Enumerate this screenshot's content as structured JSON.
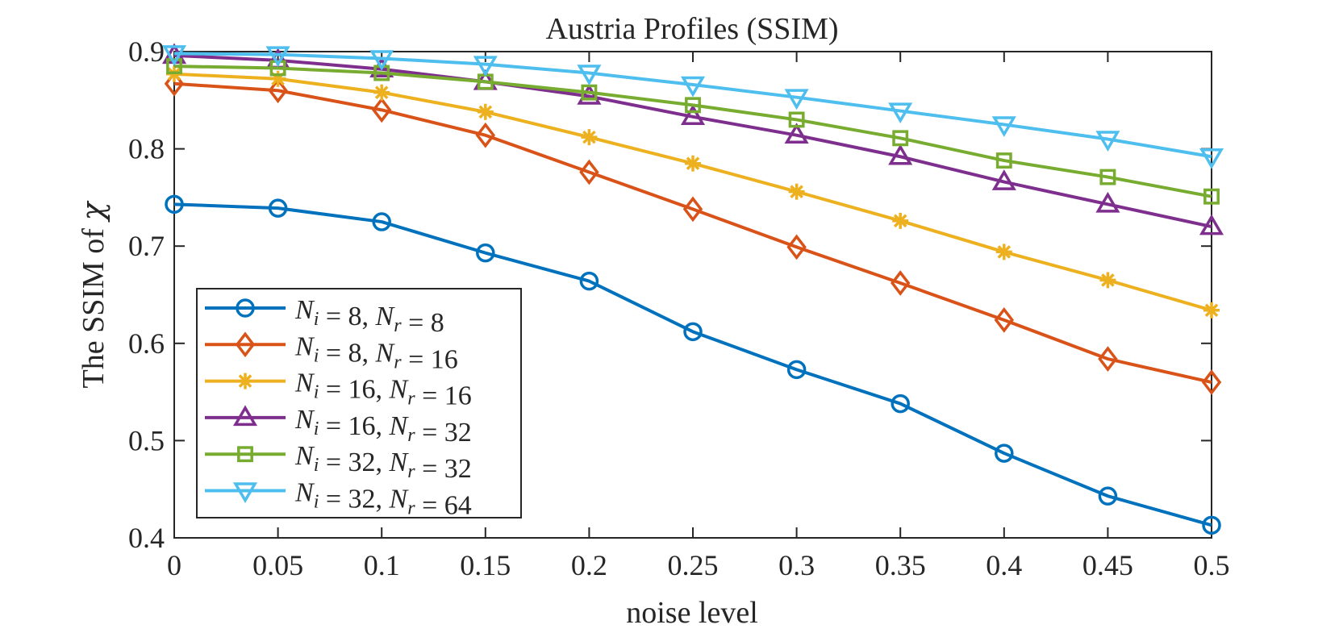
{
  "chart_data": {
    "type": "line",
    "title": "Austria Profiles (SSIM)",
    "xlabel": "noise level",
    "ylabel": "The SSIM of χ",
    "ylabel_prefix": "The SSIM of ",
    "ylabel_symbol": "χ",
    "xlim": [
      0,
      0.5
    ],
    "ylim": [
      0.4,
      0.9
    ],
    "grid": false,
    "legend_position": "bottom-left",
    "x": [
      0,
      0.05,
      0.1,
      0.15,
      0.2,
      0.25,
      0.3,
      0.35,
      0.4,
      0.45,
      0.5
    ],
    "x_tick_labels": [
      "0",
      "0.05",
      "0.1",
      "0.15",
      "0.2",
      "0.25",
      "0.3",
      "0.35",
      "0.4",
      "0.45",
      "0.5"
    ],
    "y_ticks": [
      0.4,
      0.5,
      0.6,
      0.7,
      0.8,
      0.9
    ],
    "y_tick_labels": [
      "0.4",
      "0.5",
      "0.6",
      "0.7",
      "0.8",
      "0.9"
    ],
    "series": [
      {
        "name": "N_i = 8, N_r = 8",
        "ni": "8",
        "nr": "8",
        "color": "#0072BD",
        "marker": "circle",
        "values": [
          0.743,
          0.739,
          0.725,
          0.693,
          0.664,
          0.612,
          0.573,
          0.538,
          0.487,
          0.443,
          0.413
        ]
      },
      {
        "name": "N_i = 8, N_r = 16",
        "ni": "8",
        "nr": "16",
        "color": "#D95319",
        "marker": "diamond",
        "values": [
          0.867,
          0.86,
          0.84,
          0.814,
          0.776,
          0.738,
          0.699,
          0.662,
          0.624,
          0.584,
          0.56
        ]
      },
      {
        "name": "N_i = 16, N_r = 16",
        "ni": "16",
        "nr": "16",
        "color": "#EDB120",
        "marker": "asterisk",
        "values": [
          0.877,
          0.872,
          0.858,
          0.838,
          0.812,
          0.785,
          0.756,
          0.726,
          0.694,
          0.665,
          0.634
        ]
      },
      {
        "name": "N_i = 16, N_r = 32",
        "ni": "16",
        "nr": "32",
        "color": "#7E2F8E",
        "marker": "triangle-up",
        "values": [
          0.896,
          0.891,
          0.882,
          0.869,
          0.854,
          0.833,
          0.814,
          0.792,
          0.766,
          0.743,
          0.72
        ]
      },
      {
        "name": "N_i = 32, N_r = 32",
        "ni": "32",
        "nr": "32",
        "color": "#77AC30",
        "marker": "square",
        "values": [
          0.885,
          0.883,
          0.878,
          0.869,
          0.858,
          0.845,
          0.83,
          0.811,
          0.788,
          0.771,
          0.751
        ]
      },
      {
        "name": "N_i = 32, N_r = 64",
        "ni": "32",
        "nr": "64",
        "color": "#4DBEEE",
        "marker": "triangle-down",
        "values": [
          0.898,
          0.897,
          0.893,
          0.887,
          0.878,
          0.866,
          0.853,
          0.839,
          0.825,
          0.81,
          0.792
        ]
      }
    ]
  }
}
